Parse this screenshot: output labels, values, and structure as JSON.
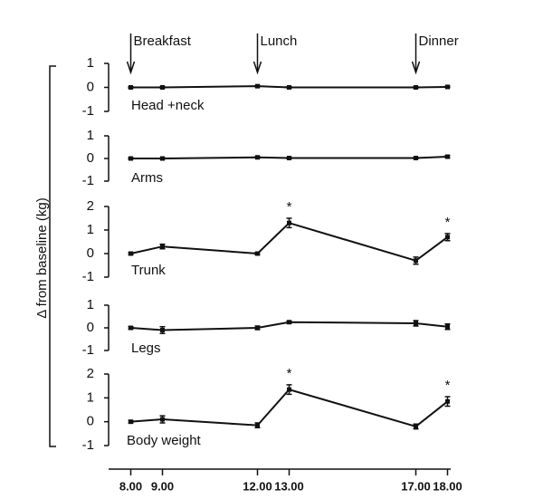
{
  "chart_data": {
    "type": "line",
    "ylabel": "Δ from baseline (kg)",
    "x": [
      8,
      9,
      12,
      13,
      17,
      18
    ],
    "xlim": [
      7.3,
      18.1
    ],
    "xticks": [
      {
        "value": 8,
        "label": "8.00"
      },
      {
        "value": 9,
        "label": "9.00"
      },
      {
        "value": 12,
        "label": "12.00"
      },
      {
        "value": 13,
        "label": "13.00"
      },
      {
        "value": 17,
        "label": "17.00"
      },
      {
        "value": 18,
        "label": "18.00"
      }
    ],
    "events": [
      {
        "label": "Breakfast",
        "x": 8
      },
      {
        "label": "Lunch",
        "x": 12
      },
      {
        "label": "Dinner",
        "x": 17
      }
    ],
    "color": "#111111",
    "panels": [
      {
        "name": "Head +neck",
        "ylim": [
          -1,
          1
        ],
        "yticks": [
          -1,
          0,
          1
        ],
        "values": [
          0,
          0,
          0.05,
          0,
          0,
          0.02
        ],
        "errors": [
          0.03,
          0.03,
          0.03,
          0.03,
          0.03,
          0.03
        ]
      },
      {
        "name": "Arms",
        "ylim": [
          -1,
          1
        ],
        "yticks": [
          -1,
          0,
          1
        ],
        "values": [
          0,
          0,
          0.05,
          0.02,
          0.02,
          0.08
        ],
        "errors": [
          0.03,
          0.03,
          0.03,
          0.03,
          0.03,
          0.05
        ]
      },
      {
        "name": "Trunk",
        "ylim": [
          -1,
          2
        ],
        "yticks": [
          -1,
          0,
          1,
          2
        ],
        "values": [
          0,
          0.3,
          0,
          1.3,
          -0.3,
          0.7
        ],
        "errors": [
          0.05,
          0.1,
          0.05,
          0.2,
          0.15,
          0.15
        ],
        "stars": [
          {
            "x": 13,
            "label": "*"
          },
          {
            "x": 18,
            "label": "*"
          }
        ]
      },
      {
        "name": "Legs",
        "ylim": [
          -1,
          1
        ],
        "yticks": [
          -1,
          0,
          1
        ],
        "values": [
          0,
          -0.1,
          0,
          0.25,
          0.2,
          0.05
        ],
        "errors": [
          0.05,
          0.15,
          0.08,
          0.05,
          0.12,
          0.12
        ]
      },
      {
        "name": "Body weight",
        "ylim": [
          -1,
          2
        ],
        "yticks": [
          -1,
          0,
          1,
          2
        ],
        "values": [
          0,
          0.1,
          -0.15,
          1.35,
          -0.2,
          0.85
        ],
        "errors": [
          0.05,
          0.15,
          0.1,
          0.2,
          0.1,
          0.2
        ],
        "stars": [
          {
            "x": 13,
            "label": "*"
          },
          {
            "x": 18,
            "label": "*"
          }
        ]
      }
    ]
  }
}
